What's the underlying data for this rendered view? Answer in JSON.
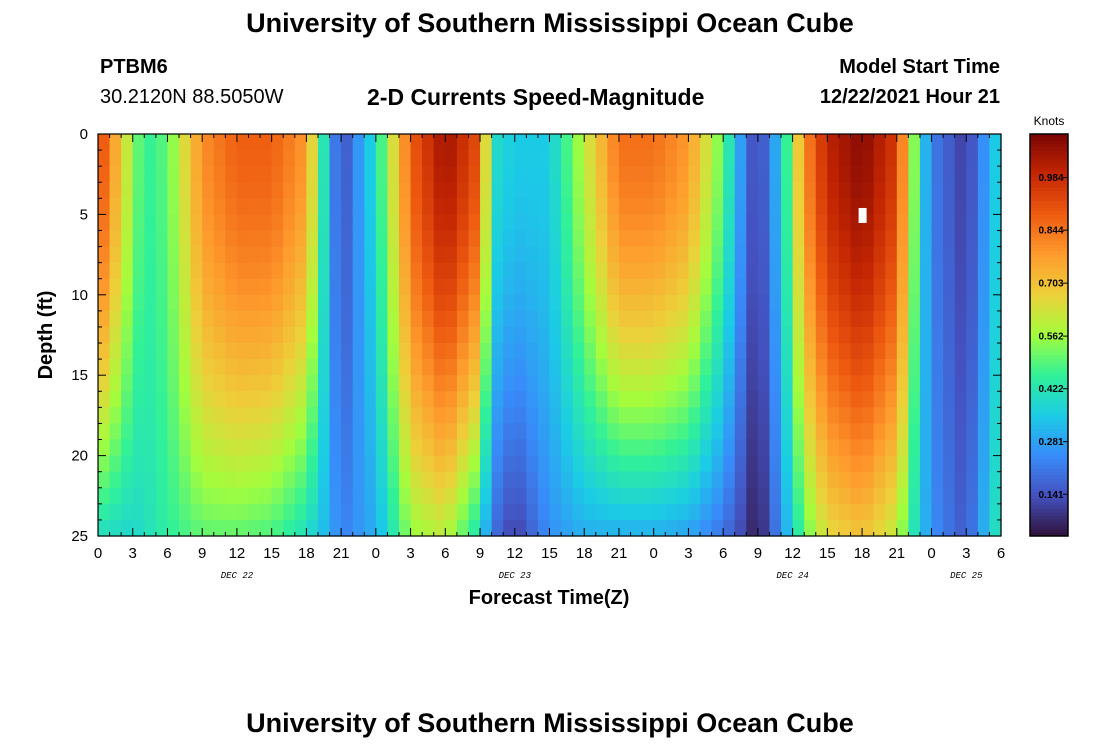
{
  "titles": {
    "main": "University of Southern Mississippi Ocean Cube",
    "footer": "University of Southern Mississippi Ocean Cube"
  },
  "header": {
    "station": "PTBM6",
    "coordinates": "30.2120N  88.5050W",
    "subtitle": "2-D Currents Speed-Magnitude",
    "model_start_label": "Model Start Time",
    "model_start_value": "12/22/2021 Hour 21"
  },
  "chart_data": {
    "type": "heatmap",
    "title": "2-D Currents Speed-Magnitude",
    "xlabel": "Forecast Time(Z)",
    "ylabel": "Depth (ft)",
    "x_ticks": [
      "0",
      "3",
      "6",
      "9",
      "12",
      "15",
      "18",
      "21",
      "0",
      "3",
      "6",
      "9",
      "12",
      "15",
      "18",
      "21",
      "0",
      "3",
      "6",
      "9",
      "12",
      "15",
      "18",
      "21",
      "0",
      "3",
      "6"
    ],
    "x_range_hours": [
      0,
      78
    ],
    "date_labels": [
      {
        "label": "DEC 22",
        "hour": 12
      },
      {
        "label": "DEC 23",
        "hour": 36
      },
      {
        "label": "DEC 24",
        "hour": 60
      },
      {
        "label": "DEC 25",
        "hour": 75
      }
    ],
    "y_ticks": [
      0,
      5,
      10,
      15,
      20,
      25
    ],
    "y_range_ft": [
      0,
      25
    ],
    "colorbar": {
      "unit": "Knots",
      "ticks": [
        0.141,
        0.281,
        0.422,
        0.562,
        0.703,
        0.844,
        0.984
      ],
      "range": [
        0.03,
        1.1
      ]
    },
    "speed_profile_knots": [
      {
        "hour": 0,
        "surface": 0.95,
        "bottom": 0.4
      },
      {
        "hour": 3,
        "surface": 0.55,
        "bottom": 0.38
      },
      {
        "hour": 4,
        "surface": 0.45,
        "bottom": 0.4
      },
      {
        "hour": 6,
        "surface": 0.5,
        "bottom": 0.45
      },
      {
        "hour": 9,
        "surface": 0.8,
        "bottom": 0.5
      },
      {
        "hour": 12,
        "surface": 0.88,
        "bottom": 0.5
      },
      {
        "hour": 15,
        "surface": 0.88,
        "bottom": 0.48
      },
      {
        "hour": 18,
        "surface": 0.78,
        "bottom": 0.4
      },
      {
        "hour": 20,
        "surface": 0.3,
        "bottom": 0.3
      },
      {
        "hour": 21,
        "surface": 0.12,
        "bottom": 0.22
      },
      {
        "hour": 24,
        "surface": 0.4,
        "bottom": 0.3
      },
      {
        "hour": 27,
        "surface": 0.88,
        "bottom": 0.55
      },
      {
        "hour": 30,
        "surface": 1.05,
        "bottom": 0.6
      },
      {
        "hour": 33,
        "surface": 0.9,
        "bottom": 0.4
      },
      {
        "hour": 34,
        "surface": 0.4,
        "bottom": 0.2
      },
      {
        "hour": 36,
        "surface": 0.35,
        "bottom": 0.1
      },
      {
        "hour": 39,
        "surface": 0.35,
        "bottom": 0.25
      },
      {
        "hour": 42,
        "surface": 0.6,
        "bottom": 0.3
      },
      {
        "hour": 45,
        "surface": 0.85,
        "bottom": 0.3
      },
      {
        "hour": 48,
        "surface": 0.85,
        "bottom": 0.3
      },
      {
        "hour": 51,
        "surface": 0.78,
        "bottom": 0.28
      },
      {
        "hour": 54,
        "surface": 0.5,
        "bottom": 0.2
      },
      {
        "hour": 56,
        "surface": 0.2,
        "bottom": 0.1
      },
      {
        "hour": 57,
        "surface": 0.1,
        "bottom": 0.04
      },
      {
        "hour": 59,
        "surface": 0.35,
        "bottom": 0.25
      },
      {
        "hour": 61,
        "surface": 0.8,
        "bottom": 0.5
      },
      {
        "hour": 63,
        "surface": 1.0,
        "bottom": 0.65
      },
      {
        "hour": 66,
        "surface": 1.08,
        "bottom": 0.7
      },
      {
        "hour": 69,
        "surface": 0.95,
        "bottom": 0.6
      },
      {
        "hour": 71,
        "surface": 0.4,
        "bottom": 0.35
      },
      {
        "hour": 72,
        "surface": 0.22,
        "bottom": 0.25
      },
      {
        "hour": 75,
        "surface": 0.1,
        "bottom": 0.15
      },
      {
        "hour": 77,
        "surface": 0.3,
        "bottom": 0.35
      },
      {
        "hour": 78,
        "surface": 0.4,
        "bottom": 0.45
      }
    ]
  }
}
